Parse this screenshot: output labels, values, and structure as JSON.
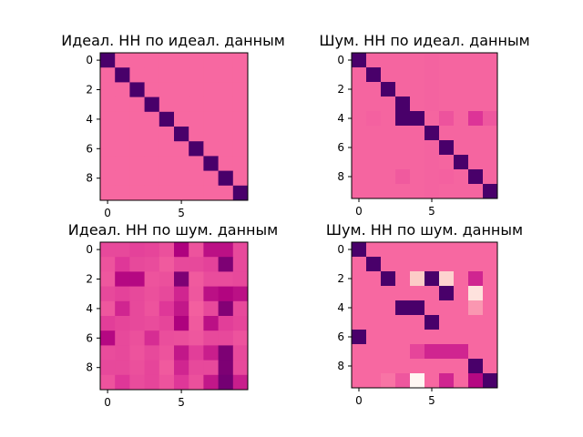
{
  "figure": {
    "colormap": "RdPu",
    "colors": {
      "min": "#49006a",
      "low": "#ae017e",
      "mid": "#dd3497",
      "max": "#f768a1",
      "light": "#fcc5c0",
      "lightest": "#fff7f3"
    }
  },
  "chart_data": [
    {
      "type": "heatmap",
      "title": "Идеал. НН по идеал. данным",
      "x_ticks": [
        "0",
        "5"
      ],
      "y_ticks": [
        "0",
        "2",
        "4",
        "6",
        "8"
      ],
      "vmin": 0,
      "vmax": 1,
      "values": [
        [
          0,
          1,
          1,
          1,
          1,
          1,
          1,
          1,
          1,
          1
        ],
        [
          1,
          0,
          1,
          1,
          1,
          1,
          1,
          1,
          1,
          1
        ],
        [
          1,
          1,
          0,
          1,
          1,
          1,
          1,
          1,
          1,
          1
        ],
        [
          1,
          1,
          1,
          0,
          1,
          1,
          1,
          1,
          1,
          1
        ],
        [
          1,
          1,
          1,
          1,
          0,
          1,
          1,
          1,
          1,
          1
        ],
        [
          1,
          1,
          1,
          1,
          1,
          0,
          1,
          1,
          1,
          1
        ],
        [
          1,
          1,
          1,
          1,
          1,
          1,
          0,
          1,
          1,
          1
        ],
        [
          1,
          1,
          1,
          1,
          1,
          1,
          1,
          0,
          1,
          1
        ],
        [
          1,
          1,
          1,
          1,
          1,
          1,
          1,
          1,
          0,
          1
        ],
        [
          1,
          1,
          1,
          1,
          1,
          1,
          1,
          1,
          1,
          0
        ]
      ]
    },
    {
      "type": "heatmap",
      "title": "Шум. НН по идеал. данным",
      "x_ticks": [
        "0",
        "5"
      ],
      "y_ticks": [
        "0",
        "2",
        "4",
        "6",
        "8"
      ],
      "vmin": 0,
      "vmax": 1,
      "values": [
        [
          0,
          0.98,
          0.98,
          0.98,
          0.98,
          0.97,
          0.98,
          0.98,
          0.98,
          0.98
        ],
        [
          0.98,
          0,
          0.98,
          0.98,
          0.98,
          0.97,
          0.98,
          0.98,
          0.98,
          0.98
        ],
        [
          0.98,
          0.98,
          0,
          0.98,
          0.98,
          0.97,
          0.98,
          0.98,
          0.98,
          0.98
        ],
        [
          0.98,
          0.98,
          0.98,
          0,
          0.98,
          0.97,
          0.98,
          0.98,
          0.98,
          0.98
        ],
        [
          0.98,
          0.96,
          0.98,
          0,
          0,
          0.98,
          0.88,
          0.98,
          0.7,
          0.9
        ],
        [
          0.98,
          0.98,
          0.98,
          0.98,
          0.98,
          0,
          0.98,
          0.98,
          0.98,
          0.98
        ],
        [
          0.98,
          0.98,
          0.98,
          0.98,
          0.98,
          0.97,
          0,
          0.98,
          0.98,
          0.98
        ],
        [
          0.98,
          0.98,
          0.98,
          0.98,
          0.98,
          0.97,
          0.98,
          0,
          0.98,
          0.98
        ],
        [
          0.98,
          0.98,
          0.98,
          0.92,
          0.98,
          0.97,
          0.96,
          0.98,
          0,
          0.98
        ],
        [
          0.98,
          0.98,
          0.98,
          0.98,
          0.98,
          0.97,
          0.98,
          0.98,
          0.98,
          0
        ]
      ]
    },
    {
      "type": "heatmap",
      "title": "Идеал. НН по шум. данным",
      "x_ticks": [
        "0",
        "5"
      ],
      "y_ticks": [
        "0",
        "2",
        "4",
        "6",
        "8"
      ],
      "vmin": 0,
      "vmax": 1,
      "values": [
        [
          0.82,
          0.82,
          0.78,
          0.8,
          0.86,
          0.35,
          0.88,
          0.45,
          0.45,
          0.82
        ],
        [
          0.88,
          0.72,
          0.82,
          0.84,
          0.92,
          0.82,
          0.82,
          0.78,
          0.18,
          0.82
        ],
        [
          0.9,
          0.4,
          0.4,
          0.88,
          0.86,
          0.18,
          0.92,
          0.84,
          0.84,
          0.82
        ],
        [
          0.82,
          0.78,
          0.82,
          0.86,
          0.82,
          0.6,
          0.9,
          0.45,
          0.38,
          0.45
        ],
        [
          0.9,
          0.6,
          0.82,
          0.88,
          0.72,
          0.5,
          0.95,
          0.82,
          0.2,
          0.82
        ],
        [
          0.76,
          0.8,
          0.82,
          0.84,
          0.8,
          0.35,
          0.92,
          0.45,
          0.76,
          0.8
        ],
        [
          0.4,
          0.82,
          0.86,
          0.65,
          0.85,
          0.86,
          0.9,
          0.82,
          0.82,
          0.88
        ],
        [
          0.84,
          0.82,
          0.88,
          0.82,
          0.88,
          0.5,
          0.76,
          0.55,
          0.18,
          0.82
        ],
        [
          0.82,
          0.82,
          0.86,
          0.8,
          0.92,
          0.6,
          0.82,
          0.82,
          0.18,
          0.82
        ],
        [
          0.88,
          0.72,
          0.84,
          0.8,
          0.88,
          0.72,
          0.86,
          0.5,
          0.15,
          0.55
        ]
      ]
    },
    {
      "type": "heatmap",
      "title": "Шум. НН по шум. данным",
      "x_ticks": [
        "0",
        "5"
      ],
      "y_ticks": [
        "0",
        "2",
        "4",
        "6",
        "8"
      ],
      "vmin": 0,
      "vmax": 1,
      "values": [
        [
          0,
          1,
          1,
          1,
          1,
          1,
          1,
          1,
          1,
          1
        ],
        [
          1,
          0,
          1,
          1,
          1,
          1,
          1,
          1,
          1,
          1
        ],
        [
          1,
          1,
          0,
          1,
          1.9,
          0,
          2,
          1,
          0.6,
          1
        ],
        [
          1,
          1,
          1,
          1,
          1,
          1,
          0,
          1,
          2.2,
          1
        ],
        [
          1,
          1,
          1,
          0,
          0,
          1,
          1,
          1,
          1.4,
          1
        ],
        [
          1,
          1,
          1,
          1,
          1,
          0,
          1,
          1,
          1,
          1
        ],
        [
          0,
          1,
          1,
          1,
          1,
          1,
          1,
          1,
          1,
          1
        ],
        [
          1,
          1,
          1,
          1,
          0.8,
          0.6,
          0.6,
          0.6,
          1,
          1
        ],
        [
          1,
          1,
          1,
          1,
          1,
          1,
          1,
          1,
          0,
          1
        ],
        [
          1,
          1,
          1.1,
          0.9,
          2.5,
          1,
          0.6,
          1,
          0.4,
          0
        ]
      ]
    }
  ]
}
